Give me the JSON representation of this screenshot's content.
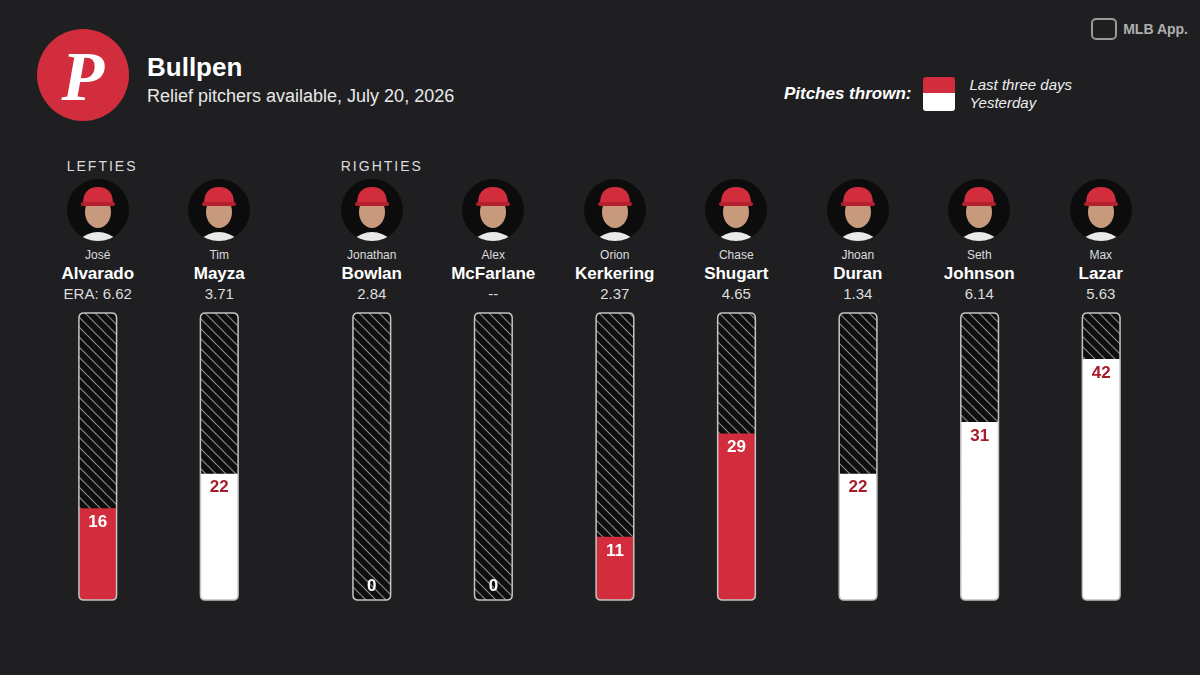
{
  "chart_data": {
    "type": "bar",
    "title": "Bullpen",
    "subtitle": "Relief pitchers available, July 20, 2026",
    "logo": "P",
    "source": "MLB App.",
    "legend_title": "Pitches thrown:",
    "legend": "top right",
    "categories": [
      "Alvarado",
      "Mayza",
      "Bowlan",
      "McFarlane",
      "Kerkering",
      "Shugart",
      "Duran",
      "Johnson",
      "Lazar"
    ],
    "first_names": [
      "José",
      "Tim",
      "Jonathan",
      "Alex",
      "Orion",
      "Chase",
      "Jhoan",
      "Seth",
      "Max"
    ],
    "groups": [
      "LEFTIES",
      "LEFTIES",
      "RIGHTIES",
      "RIGHTIES",
      "RIGHTIES",
      "RIGHTIES",
      "RIGHTIES",
      "RIGHTIES",
      "RIGHTIES"
    ],
    "era_labels": [
      "ERA: 6.62",
      "3.71",
      "2.84",
      "--",
      "2.37",
      "4.65",
      "1.34",
      "6.14",
      "5.63"
    ],
    "series": [
      {
        "name": "Last three days",
        "color": "#d22d3d",
        "values": [
          16,
          null,
          null,
          null,
          11,
          29,
          null,
          null,
          null
        ]
      },
      {
        "name": "Yesterday",
        "color": "#ffffff",
        "values": [
          null,
          22,
          0,
          0,
          null,
          null,
          22,
          31,
          42
        ]
      }
    ],
    "stacked": true,
    "data_labels": true,
    "ylim": [
      0,
      50
    ],
    "grid": false,
    "tick_labels": false
  }
}
